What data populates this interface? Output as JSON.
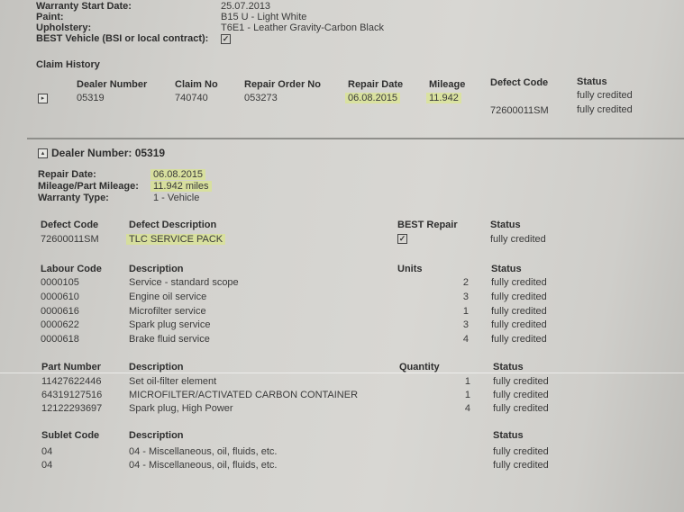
{
  "vehicle": {
    "warranty_start_label": "Warranty Start Date:",
    "warranty_start": "25.07.2013",
    "paint_label": "Paint:",
    "paint": "B15 U - Light White",
    "upholstery_label": "Upholstery:",
    "upholstery": "T6E1 - Leather Gravity-Carbon Black",
    "best_label": "BEST Vehicle (BSI or local contract):",
    "best_checked": true
  },
  "claim_history": {
    "title": "Claim History",
    "headers": [
      "Dealer Number",
      "Claim No",
      "Repair Order No",
      "Repair Date",
      "Mileage",
      "Defect Code",
      "Status"
    ],
    "row": {
      "dealer": "05319",
      "claim": "740740",
      "repair_order": "053273",
      "repair_date": "06.08.2015",
      "mileage": "11.942",
      "status": "fully credited"
    },
    "row2": {
      "defect_code": "72600011SM",
      "status": "fully credited"
    }
  },
  "dealer": {
    "title": "Dealer Number: 05319",
    "repair_date_label": "Repair Date:",
    "repair_date": "06.08.2015",
    "mileage_label": "Mileage/Part Mileage:",
    "mileage": "11.942 miles",
    "warranty_type_label": "Warranty Type:",
    "warranty_type": "1 - Vehicle"
  },
  "defect": {
    "headers": [
      "Defect Code",
      "Defect Description",
      "BEST Repair",
      "Status"
    ],
    "code": "72600011SM",
    "description": "TLC SERVICE PACK",
    "best_checked": true,
    "status": "fully credited"
  },
  "labour": {
    "headers": [
      "Labour Code",
      "Description",
      "Units",
      "Status"
    ],
    "rows": [
      [
        "0000105",
        "Service - standard scope",
        "2",
        "fully credited"
      ],
      [
        "0000610",
        "Engine oil service",
        "3",
        "fully credited"
      ],
      [
        "0000616",
        "Microfilter service",
        "1",
        "fully credited"
      ],
      [
        "0000622",
        "Spark plug service",
        "3",
        "fully credited"
      ],
      [
        "0000618",
        "Brake fluid service",
        "4",
        "fully credited"
      ]
    ]
  },
  "parts": {
    "headers": [
      "Part Number",
      "Description",
      "Quantity",
      "Status"
    ],
    "rows": [
      [
        "11427622446",
        "Set oil-filter element",
        "1",
        "fully credited"
      ],
      [
        "64319127516",
        "MICROFILTER/ACTIVATED CARBON CONTAINER",
        "1",
        "fully credited"
      ],
      [
        "12122293697",
        "Spark plug, High Power",
        "4",
        "fully credited"
      ]
    ]
  },
  "sublet": {
    "headers": [
      "Sublet Code",
      "Description",
      "Status"
    ],
    "rows": [
      [
        "04",
        "04 - Miscellaneous, oil, fluids, etc.",
        "fully credited"
      ],
      [
        "04",
        "04 - Miscellaneous, oil, fluids, etc.",
        "fully credited"
      ]
    ]
  },
  "colors": {
    "highlight": "#dceb78",
    "paper": "#d3d2ce"
  }
}
